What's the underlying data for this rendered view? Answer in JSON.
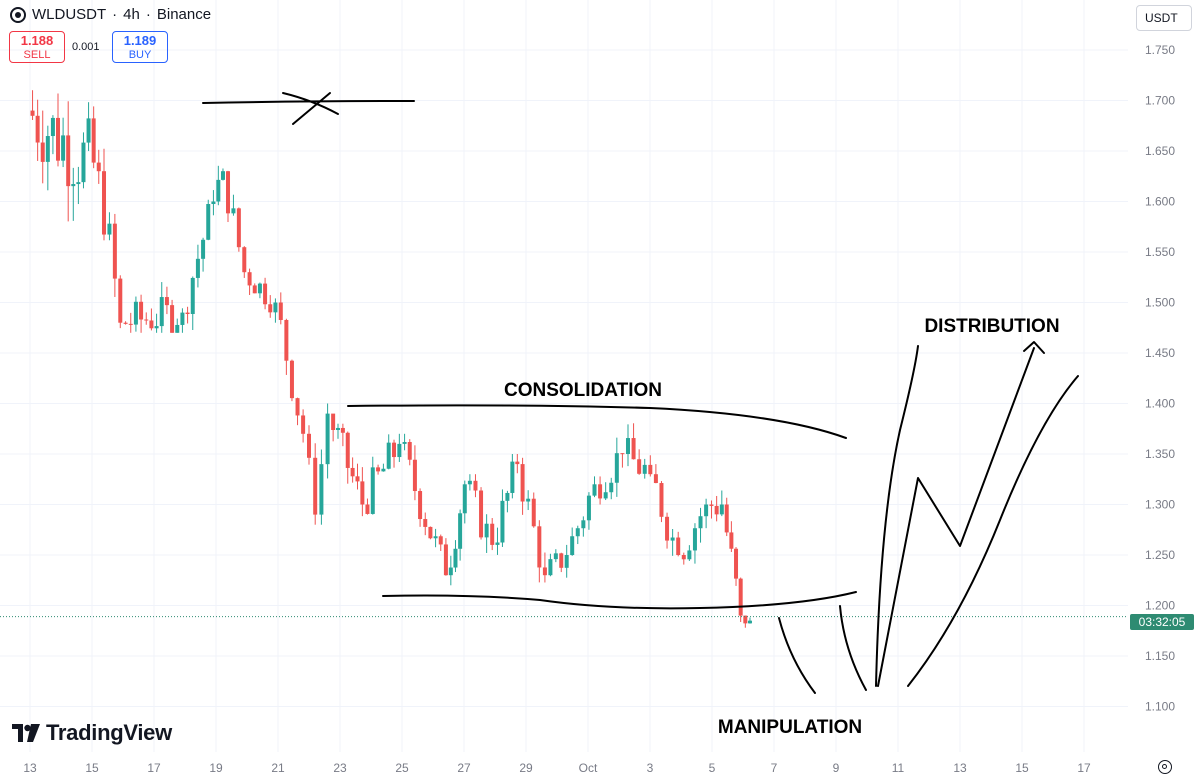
{
  "header": {
    "symbol": "WLDUSDT",
    "sep1": "·",
    "interval": "4h",
    "sep2": "·",
    "exchange": "Binance"
  },
  "trade": {
    "sell_price": "1.188",
    "sell_label": "SELL",
    "spread": "0.001",
    "buy_price": "1.189",
    "buy_label": "BUY"
  },
  "currency": "USDT",
  "countdown": "03:32:05",
  "logo_text": "TradingView",
  "colors": {
    "up": "#26a69a",
    "down": "#ef5350",
    "price_line": "#2e8b72",
    "grid": "#f0f3fa",
    "axis_text": "#787b86",
    "drawing": "#000000"
  },
  "icons": [
    "coin-icon",
    "tradingview-logo-icon",
    "settings-icon"
  ],
  "annotations": {
    "consolidation": "CONSOLIDATION",
    "distribution": "DISTRIBUTION",
    "manipulation": "MANIPULATION"
  },
  "chart_data": {
    "type": "candlestick",
    "interval_hours": 4,
    "x_tick_labels": [
      "13",
      "15",
      "17",
      "19",
      "21",
      "23",
      "25",
      "27",
      "29",
      "Oct",
      "3",
      "5",
      "7",
      "9",
      "11",
      "13",
      "15",
      "17"
    ],
    "y_ticks": [
      "1.750",
      "1.700",
      "1.650",
      "1.600",
      "1.550",
      "1.500",
      "1.450",
      "1.400",
      "1.350",
      "1.300",
      "1.250",
      "1.200",
      "1.150",
      "1.100"
    ],
    "ylim": [
      1.085,
      1.775
    ],
    "last_price": 1.189,
    "segments": [
      {
        "from_day": 0.0,
        "to_day": 2.3,
        "open": 1.69,
        "close": 1.63,
        "lo": 1.56,
        "hi": 1.76,
        "vol": 0.045
      },
      {
        "from_day": 2.3,
        "to_day": 3.0,
        "open": 1.63,
        "close": 1.48,
        "lo": 1.46,
        "hi": 1.66,
        "vol": 0.03
      },
      {
        "from_day": 3.0,
        "to_day": 5.0,
        "open": 1.48,
        "close": 1.49,
        "lo": 1.47,
        "hi": 1.53,
        "vol": 0.02
      },
      {
        "from_day": 5.0,
        "to_day": 6.0,
        "open": 1.49,
        "close": 1.6,
        "lo": 1.47,
        "hi": 1.64,
        "vol": 0.02
      },
      {
        "from_day": 6.0,
        "to_day": 6.3,
        "open": 1.6,
        "close": 1.63,
        "lo": 1.56,
        "hi": 1.7,
        "vol": 0.02
      },
      {
        "from_day": 6.3,
        "to_day": 7.0,
        "open": 1.63,
        "close": 1.53,
        "lo": 1.5,
        "hi": 1.64,
        "vol": 0.02
      },
      {
        "from_day": 7.0,
        "to_day": 8.0,
        "open": 1.53,
        "close": 1.5,
        "lo": 1.48,
        "hi": 1.54,
        "vol": 0.015
      },
      {
        "from_day": 8.0,
        "to_day": 8.9,
        "open": 1.5,
        "close": 1.37,
        "lo": 1.36,
        "hi": 1.51,
        "vol": 0.02
      },
      {
        "from_day": 8.9,
        "to_day": 9.3,
        "open": 1.37,
        "close": 1.29,
        "lo": 1.28,
        "hi": 1.4,
        "vol": 0.02
      },
      {
        "from_day": 9.3,
        "to_day": 9.7,
        "open": 1.29,
        "close": 1.39,
        "lo": 1.28,
        "hi": 1.4,
        "vol": 0.02
      },
      {
        "from_day": 9.7,
        "to_day": 10.8,
        "open": 1.39,
        "close": 1.3,
        "lo": 1.26,
        "hi": 1.38,
        "vol": 0.02
      },
      {
        "from_day": 10.8,
        "to_day": 12.0,
        "open": 1.3,
        "close": 1.36,
        "lo": 1.29,
        "hi": 1.37,
        "vol": 0.02
      },
      {
        "from_day": 12.0,
        "to_day": 13.5,
        "open": 1.36,
        "close": 1.23,
        "lo": 1.22,
        "hi": 1.37,
        "vol": 0.02
      },
      {
        "from_day": 13.5,
        "to_day": 14.1,
        "open": 1.23,
        "close": 1.32,
        "lo": 1.22,
        "hi": 1.39,
        "vol": 0.02
      },
      {
        "from_day": 14.1,
        "to_day": 15.0,
        "open": 1.32,
        "close": 1.26,
        "lo": 1.24,
        "hi": 1.33,
        "vol": 0.02
      },
      {
        "from_day": 15.0,
        "to_day": 15.8,
        "open": 1.26,
        "close": 1.34,
        "lo": 1.25,
        "hi": 1.35,
        "vol": 0.02
      },
      {
        "from_day": 15.8,
        "to_day": 16.7,
        "open": 1.34,
        "close": 1.23,
        "lo": 1.22,
        "hi": 1.35,
        "vol": 0.02
      },
      {
        "from_day": 16.7,
        "to_day": 17.4,
        "open": 1.23,
        "close": 1.25,
        "lo": 1.2,
        "hi": 1.26,
        "vol": 0.015
      },
      {
        "from_day": 17.4,
        "to_day": 18.3,
        "open": 1.25,
        "close": 1.32,
        "lo": 1.24,
        "hi": 1.33,
        "vol": 0.02
      },
      {
        "from_day": 18.3,
        "to_day": 19.2,
        "open": 1.32,
        "close": 1.35,
        "lo": 1.3,
        "hi": 1.38,
        "vol": 0.02
      },
      {
        "from_day": 19.2,
        "to_day": 20.1,
        "open": 1.35,
        "close": 1.33,
        "lo": 1.31,
        "hi": 1.4,
        "vol": 0.02
      },
      {
        "from_day": 20.1,
        "to_day": 21.0,
        "open": 1.33,
        "close": 1.25,
        "lo": 1.24,
        "hi": 1.34,
        "vol": 0.02
      },
      {
        "from_day": 21.0,
        "to_day": 21.9,
        "open": 1.25,
        "close": 1.3,
        "lo": 1.24,
        "hi": 1.32,
        "vol": 0.02
      },
      {
        "from_day": 21.9,
        "to_day": 22.4,
        "open": 1.3,
        "close": 1.3,
        "lo": 1.28,
        "hi": 1.33,
        "vol": 0.02
      },
      {
        "from_day": 22.4,
        "to_day": 23.0,
        "open": 1.3,
        "close": 1.19,
        "lo": 1.18,
        "hi": 1.31,
        "vol": 0.02
      },
      {
        "from_day": 23.0,
        "to_day": 23.3,
        "open": 1.19,
        "close": 1.185,
        "lo": 1.17,
        "hi": 1.2,
        "vol": 0.012
      }
    ]
  }
}
